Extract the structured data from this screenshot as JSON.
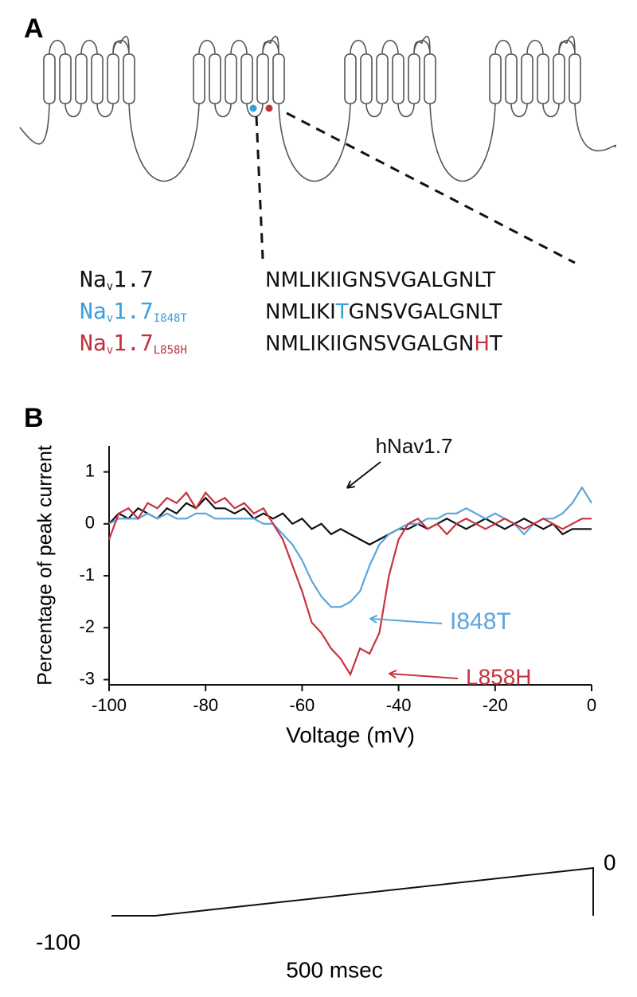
{
  "panel_a": {
    "label": "A",
    "variants": [
      {
        "name": "Na",
        "sub": "v",
        "version": "1.7",
        "color": "#111111",
        "sequence": [
          {
            "text": "NMLIKIIGNSVGALGNLT"
          }
        ]
      },
      {
        "name": "Na",
        "sub": "v",
        "version": "1.7",
        "mutation": "I848T",
        "color": "#3aa0d8",
        "sequence": [
          {
            "text": "NMLIKI"
          },
          {
            "text": "T",
            "color": "#3aa0d8"
          },
          {
            "text": "GNSVGALGNLT"
          }
        ]
      },
      {
        "name": "Na",
        "sub": "v",
        "version": "1.7",
        "mutation": "L858H",
        "color": "#c0323c",
        "sequence": [
          {
            "text": "NMLIKIIGNSVGALGN"
          },
          {
            "text": "H",
            "color": "#c0323c"
          },
          {
            "text": "T"
          }
        ]
      }
    ]
  },
  "chart_data": {
    "type": "line",
    "panel_label": "B",
    "x_label": "Voltage (mV)",
    "y_label": "Percentage of peak current",
    "x": [
      -100,
      -98,
      -96,
      -94,
      -92,
      -90,
      -88,
      -86,
      -84,
      -82,
      -80,
      -78,
      -76,
      -74,
      -72,
      -70,
      -68,
      -66,
      -64,
      -62,
      -60,
      -58,
      -56,
      -54,
      -52,
      -50,
      -48,
      -46,
      -44,
      -42,
      -40,
      -38,
      -36,
      -34,
      -32,
      -30,
      -28,
      -26,
      -24,
      -22,
      -20,
      -18,
      -16,
      -14,
      -12,
      -10,
      -8,
      -6,
      -4,
      -2,
      0
    ],
    "series": [
      {
        "name": "hNav1.7",
        "color": "#111111",
        "values": [
          0,
          0.2,
          0.1,
          0.3,
          0.2,
          0.1,
          0.3,
          0.2,
          0.4,
          0.3,
          0.5,
          0.3,
          0.3,
          0.2,
          0.3,
          0.1,
          0.2,
          0.1,
          0.2,
          0.0,
          0.1,
          -0.1,
          0.0,
          -0.2,
          -0.1,
          -0.2,
          -0.3,
          -0.4,
          -0.3,
          -0.2,
          -0.1,
          -0.1,
          0.0,
          -0.1,
          0.0,
          0.1,
          0.0,
          -0.1,
          0.0,
          0.1,
          0.0,
          -0.1,
          0.0,
          0.1,
          0.0,
          -0.1,
          0.0,
          -0.2,
          -0.1,
          -0.1,
          -0.1
        ]
      },
      {
        "name": "I848T",
        "color": "#5aa5dc",
        "values": [
          0,
          0.1,
          0.1,
          0.1,
          0.2,
          0.1,
          0.2,
          0.1,
          0.1,
          0.2,
          0.2,
          0.1,
          0.1,
          0.1,
          0.1,
          0.1,
          0.0,
          0.0,
          -0.2,
          -0.4,
          -0.7,
          -1.1,
          -1.4,
          -1.6,
          -1.6,
          -1.5,
          -1.3,
          -0.8,
          -0.4,
          -0.2,
          -0.1,
          0.0,
          0.0,
          0.1,
          0.1,
          0.2,
          0.2,
          0.3,
          0.2,
          0.1,
          0.2,
          0.1,
          0.0,
          -0.2,
          0.0,
          0.1,
          0.1,
          0.2,
          0.4,
          0.7,
          0.4
        ]
      },
      {
        "name": "L858H",
        "color": "#c8323c",
        "values": [
          -0.3,
          0.2,
          0.3,
          0.1,
          0.4,
          0.3,
          0.5,
          0.4,
          0.6,
          0.3,
          0.6,
          0.4,
          0.5,
          0.3,
          0.4,
          0.2,
          0.3,
          0.0,
          -0.3,
          -0.8,
          -1.3,
          -1.9,
          -2.1,
          -2.4,
          -2.6,
          -2.9,
          -2.4,
          -2.5,
          -2.1,
          -1.0,
          -0.3,
          0.0,
          0.1,
          -0.1,
          0.0,
          -0.2,
          0.0,
          0.1,
          0.0,
          -0.1,
          0.0,
          0.1,
          0.0,
          -0.1,
          0.0,
          0.1,
          0.0,
          -0.1,
          0.0,
          0.1,
          0.1
        ]
      }
    ],
    "xlim": [
      -100,
      0
    ],
    "xticks": [
      -100,
      -80,
      -60,
      -40,
      -20,
      0
    ],
    "ylim": [
      -3.1,
      1.5
    ],
    "yticks": [
      -3,
      -2,
      -1,
      0,
      1
    ],
    "grid": false
  },
  "protocol": {
    "top_label": "0",
    "bottom_label": "-100",
    "duration": "500 msec"
  }
}
